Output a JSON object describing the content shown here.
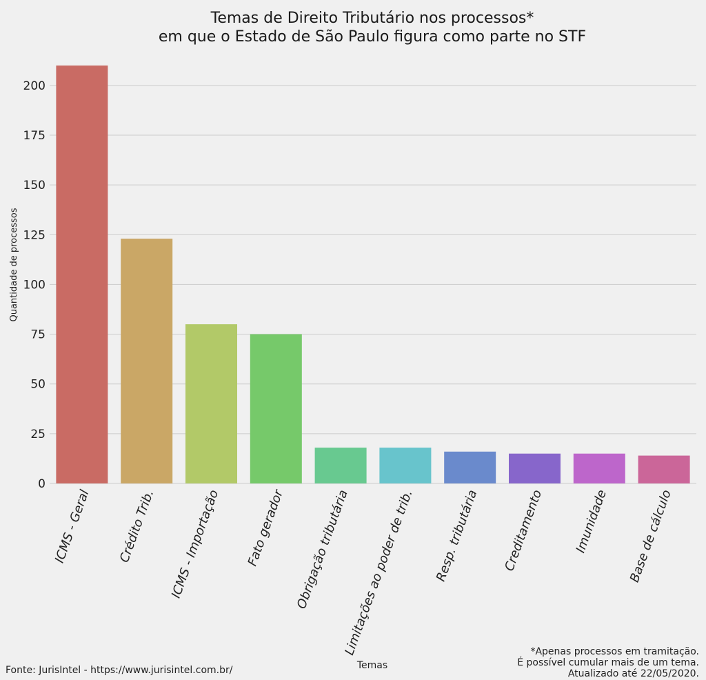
{
  "chart_data": {
    "type": "bar",
    "title_lines": [
      "Temas de Direito Tributário nos processos*",
      "em que o Estado de São Paulo figura como parte no STF"
    ],
    "xlabel": "Temas",
    "ylabel": "Quantidade de processos",
    "categories": [
      "ICMS - Geral",
      "Crédito Trib.",
      "ICMS - Importação",
      "Fato gerador",
      "Obrigação tributária",
      "Limitações ao poder de trib.",
      "Resp. tributária",
      "Creditamento",
      "Imunidade",
      "Base de cálculo"
    ],
    "values": [
      210,
      123,
      80,
      75,
      18,
      18,
      16,
      15,
      15,
      14
    ],
    "colors": [
      "#c96b64",
      "#caa766",
      "#b2c968",
      "#76c96a",
      "#68c990",
      "#68c4cc",
      "#6a8acc",
      "#8766cb",
      "#bd66cb",
      "#cb6699"
    ],
    "ylim": [
      0,
      210
    ],
    "yticks": [
      0,
      25,
      50,
      75,
      100,
      125,
      150,
      175,
      200
    ],
    "grid": true,
    "legend": "none"
  },
  "footer": {
    "source": "Fonte: JurisIntel - https://www.jurisintel.com.br/",
    "notes": [
      "*Apenas processos em tramitação.",
      "É possível cumular mais de um tema.",
      "Atualizado até 22/05/2020."
    ]
  }
}
